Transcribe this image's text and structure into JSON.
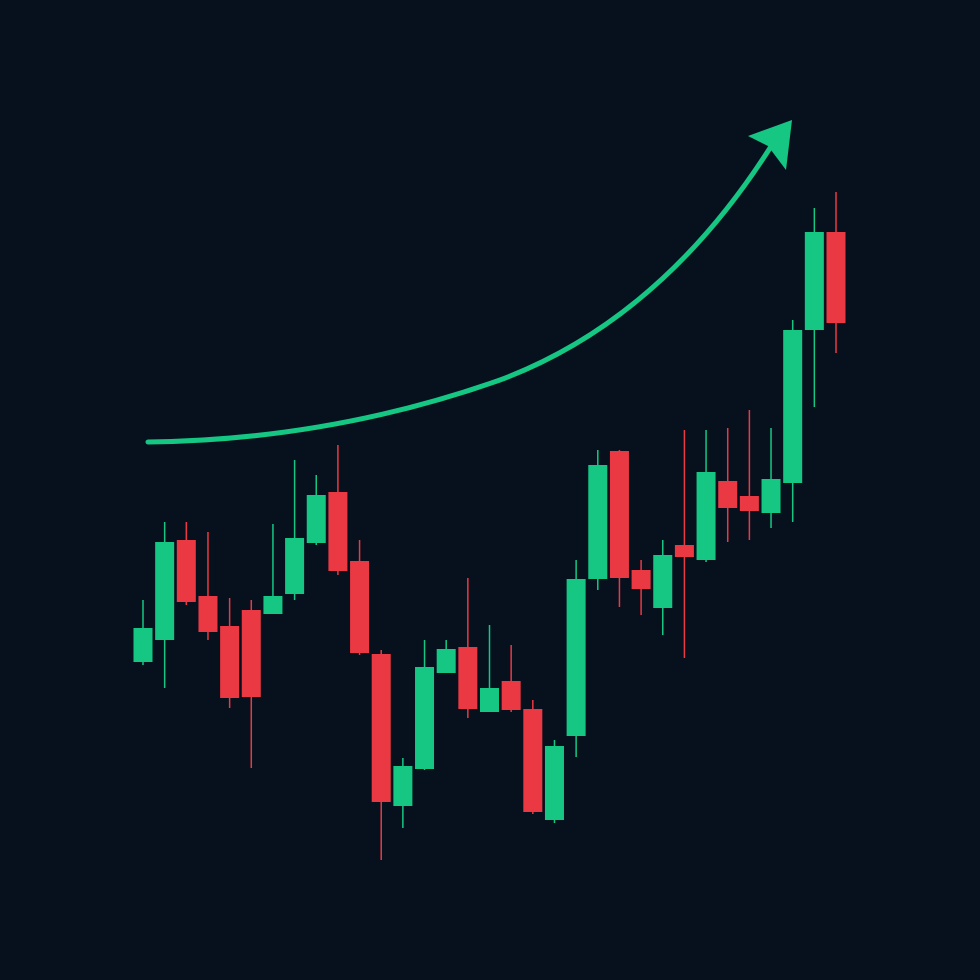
{
  "chart_data": {
    "type": "candlestick",
    "up_color": "#16c784",
    "down_color": "#ea3943",
    "ylim": [
      0,
      980
    ],
    "open": [
      318,
      340,
      440,
      384,
      354,
      370,
      366,
      386,
      437,
      488,
      419,
      326,
      174,
      211,
      307,
      333,
      268,
      299,
      271,
      160,
      244,
      401,
      529,
      410,
      372,
      435,
      420,
      499,
      484,
      467,
      497,
      650,
      748
    ],
    "close": [
      352,
      438,
      378,
      348,
      282,
      283,
      384,
      442,
      485,
      409,
      327,
      178,
      214,
      313,
      331,
      271,
      292,
      270,
      168,
      234,
      401,
      515,
      402,
      391,
      425,
      423,
      508,
      472,
      469,
      501,
      650,
      748,
      657
    ],
    "high": [
      380,
      458,
      458,
      448,
      382,
      380,
      456,
      520,
      505,
      535,
      440,
      330,
      222,
      340,
      340,
      402,
      355,
      335,
      280,
      240,
      420,
      530,
      530,
      420,
      440,
      550,
      550,
      552,
      570,
      552,
      660,
      772,
      788
    ],
    "low": [
      315,
      292,
      375,
      340,
      272,
      212,
      366,
      380,
      435,
      405,
      325,
      120,
      152,
      210,
      307,
      262,
      268,
      268,
      166,
      157,
      223,
      390,
      373,
      365,
      345,
      322,
      418,
      438,
      440,
      452,
      458,
      573,
      627
    ]
  }
}
